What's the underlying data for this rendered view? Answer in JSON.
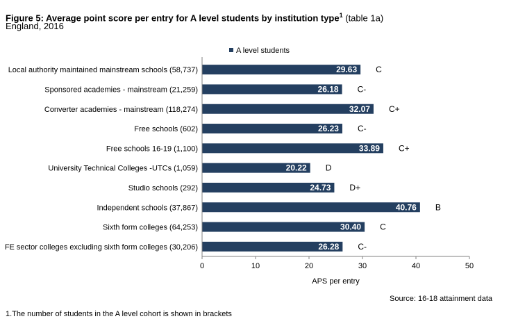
{
  "header": {
    "title_main": "Figure 5: Average point score per entry for A level students by institution type",
    "title_sup": "1",
    "title_suffix": " (table 1a)",
    "subtitle": "England, 2016"
  },
  "source": "Source: 16-18 attainment data",
  "footnote": "1.The number of students in the A level cohort is shown in brackets",
  "colors": {
    "bar": "#243F60",
    "axis": "#808080",
    "label_text": "#ffffff"
  },
  "chart_data": {
    "type": "bar",
    "orientation": "horizontal",
    "categories": [
      "Local authority maintained mainstream schools (58,737)",
      "Sponsored academies - mainstream (21,259)",
      "Converter academies - mainstream (118,274)",
      "Free schools (602)",
      "Free schools 16-19 (1,100)",
      "University Technical Colleges -UTCs (1,059)",
      "Studio schools (292)",
      "Independent schools (37,867)",
      "Sixth form colleges (64,253)",
      "FE sector colleges excluding sixth form colleges (30,206)"
    ],
    "series": [
      {
        "name": "A level students",
        "values": [
          29.63,
          26.18,
          32.07,
          26.23,
          33.89,
          20.22,
          24.73,
          40.76,
          30.4,
          26.28
        ],
        "value_labels": [
          "29.63",
          "26.18",
          "32.07",
          "26.23",
          "33.89",
          "20.22",
          "24.73",
          "40.76",
          "30.40",
          "26.28"
        ],
        "grades": [
          "C",
          "C-",
          "C+",
          "C-",
          "C+",
          "D",
          "D+",
          "B",
          "C",
          "C-"
        ]
      }
    ],
    "xlabel": "APS per entry",
    "ylabel": "",
    "xlim": [
      0,
      50
    ],
    "xticks": [
      "0",
      "10",
      "20",
      "30",
      "40",
      "50"
    ],
    "grid": false,
    "legend": "top-center"
  }
}
